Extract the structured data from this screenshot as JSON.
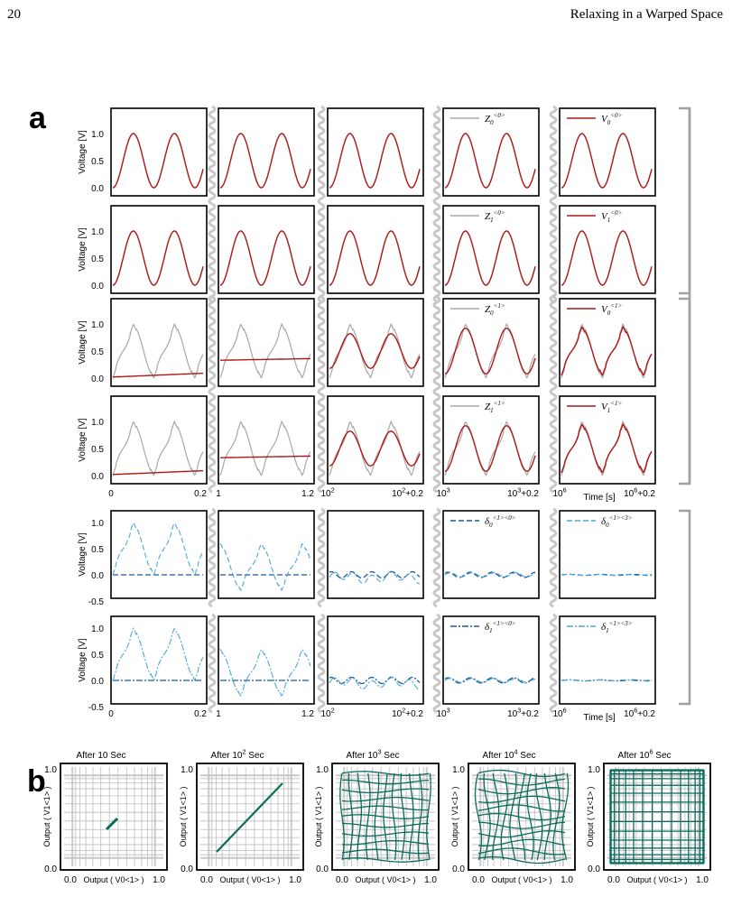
{
  "page": {
    "number": "20",
    "running_title": "Relaxing in a Warped Space"
  },
  "figure": {
    "panel_a_label": "a",
    "panel_b_label": "b",
    "ylabel": "Voltage [V]",
    "time_label": "Time [s]",
    "yticks_top": [
      "1.0",
      "0.5",
      "0.0"
    ],
    "yticks_dev": [
      "1.0",
      "0.5",
      "0.0",
      "-0.5"
    ],
    "segment_ticks": [
      {
        "start": "0",
        "end": "0.2",
        "start_sup": "",
        "end_base": "0.2",
        "end_sup": ""
      },
      {
        "start": "1",
        "end": "1.2",
        "start_sup": "",
        "end_base": "1.2",
        "end_sup": ""
      },
      {
        "start": "10",
        "start_sup": "2",
        "end_base": "10",
        "end_sup": "2",
        "end_tail": "+0.2"
      },
      {
        "start": "10",
        "start_sup": "3",
        "end_base": "10",
        "end_sup": "3",
        "end_tail": "+0.2"
      },
      {
        "start": "10",
        "start_sup": "6",
        "end_base": "10",
        "end_sup": "6",
        "end_tail": "+0.2"
      }
    ],
    "rows": [
      {
        "legend": [
          {
            "sym": "Z",
            "sub": "0",
            "sup": "<0>",
            "color": "#a8a8a8",
            "dash": ""
          },
          {
            "sym": "V",
            "sub": "0",
            "sup": "<0>",
            "color": "#b01818",
            "dash": ""
          }
        ]
      },
      {
        "legend": [
          {
            "sym": "Z",
            "sub": "1",
            "sup": "<0>",
            "color": "#a8a8a8",
            "dash": ""
          },
          {
            "sym": "V",
            "sub": "1",
            "sup": "<0>",
            "color": "#b01818",
            "dash": ""
          }
        ]
      },
      {
        "legend": [
          {
            "sym": "Z",
            "sub": "0",
            "sup": "<1>",
            "color": "#a8a8a8",
            "dash": ""
          },
          {
            "sym": "V",
            "sub": "0",
            "sup": "<1>",
            "color": "#b01818",
            "dash": ""
          }
        ]
      },
      {
        "legend": [
          {
            "sym": "Z",
            "sub": "1",
            "sup": "<1>",
            "color": "#a8a8a8",
            "dash": ""
          },
          {
            "sym": "V",
            "sub": "1",
            "sup": "<1>",
            "color": "#b01818",
            "dash": ""
          }
        ]
      },
      {
        "legend": [
          {
            "sym": "δ",
            "sub": "0",
            "sup": "<1><0>",
            "color": "#1a5a9a",
            "dash": "6,3"
          },
          {
            "sym": "δ",
            "sub": "0",
            "sup": "<1><3>",
            "color": "#4aa8dc",
            "dash": "6,3"
          }
        ]
      },
      {
        "legend": [
          {
            "sym": "δ",
            "sub": "1",
            "sup": "<1><0>",
            "color": "#1a5a9a",
            "dash": "7,2,2,2"
          },
          {
            "sym": "δ",
            "sub": "1",
            "sup": "<1><3>",
            "color": "#4aa8dc",
            "dash": "7,2,2,2"
          }
        ]
      }
    ],
    "b_titles": [
      {
        "text": "After 10",
        "sup": "",
        "tail": " Sec"
      },
      {
        "text": "After 10",
        "sup": "2",
        "tail": " Sec"
      },
      {
        "text": "After 10",
        "sup": "3",
        "tail": " Sec"
      },
      {
        "text": "After 10",
        "sup": "4",
        "tail": " Sec"
      },
      {
        "text": "After 10",
        "sup": "6",
        "tail": " Sec"
      }
    ],
    "b_xlabel": "Output ( V0<1> )",
    "b_ylabel": "Output ( V1<1> )",
    "b_ticks": [
      "0.0",
      "1.0"
    ],
    "colors": {
      "gray": "#a8a8a8",
      "red": "#b01818",
      "dark_blue": "#1a5a9a",
      "light_blue": "#4aa8dc",
      "teal": "#0d6b5c",
      "bracket": "#a0a0a0"
    }
  }
}
